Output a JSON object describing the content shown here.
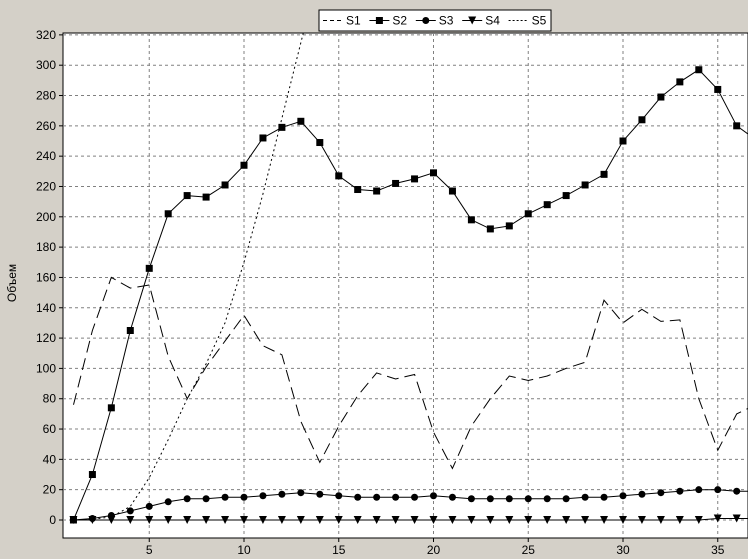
{
  "chart_data": {
    "type": "line",
    "title": "",
    "xlabel": "",
    "ylabel": "Объем",
    "xlim": [
      0,
      37
    ],
    "ylim": [
      -15,
      320
    ],
    "xticks": [
      5,
      10,
      15,
      20,
      25,
      30,
      35
    ],
    "yticks": [
      0,
      20,
      40,
      60,
      80,
      100,
      120,
      140,
      160,
      180,
      200,
      220,
      240,
      260,
      280,
      300,
      320
    ],
    "grid": true,
    "legend_position": "top-center",
    "x": [
      1,
      2,
      3,
      4,
      5,
      6,
      7,
      8,
      9,
      10,
      11,
      12,
      13,
      14,
      15,
      16,
      17,
      18,
      19,
      20,
      21,
      22,
      23,
      24,
      25,
      26,
      27,
      28,
      29,
      30,
      31,
      32,
      33,
      34,
      35,
      36,
      37
    ],
    "series": [
      {
        "name": "S1",
        "line": "dash",
        "marker": "none",
        "values": [
          76,
          125,
          160,
          153,
          155,
          108,
          80,
          101,
          118,
          135,
          115,
          109,
          65,
          38,
          62,
          82,
          97,
          93,
          96,
          58,
          34,
          62,
          80,
          95,
          92,
          95,
          100,
          104,
          145,
          130,
          139,
          131,
          132,
          80,
          46,
          70,
          76
        ]
      },
      {
        "name": "S2",
        "line": "solid",
        "marker": "square",
        "values": [
          0,
          30,
          74,
          125,
          166,
          202,
          214,
          213,
          221,
          234,
          252,
          259,
          263,
          249,
          227,
          218,
          217,
          222,
          225,
          229,
          217,
          198,
          192,
          194,
          202,
          208,
          214,
          221,
          228,
          250,
          264,
          279,
          289,
          297,
          284,
          260,
          251
        ]
      },
      {
        "name": "S3",
        "line": "solid",
        "marker": "circle",
        "values": [
          0,
          1,
          3,
          6,
          9,
          12,
          14,
          14,
          15,
          15,
          16,
          17,
          18,
          17,
          16,
          15,
          15,
          15,
          15,
          16,
          15,
          14,
          14,
          14,
          14,
          14,
          14,
          15,
          15,
          16,
          17,
          18,
          19,
          20,
          20,
          19,
          19
        ]
      },
      {
        "name": "S4",
        "line": "solid",
        "marker": "triangle-down",
        "values": [
          0,
          0,
          0,
          0,
          0,
          0,
          0,
          0,
          0,
          0,
          0,
          0,
          0,
          0,
          0,
          0,
          0,
          0,
          0,
          0,
          0,
          0,
          0,
          0,
          0,
          0,
          0,
          0,
          0,
          0,
          0,
          0,
          0,
          0,
          1,
          1,
          1
        ]
      },
      {
        "name": "S5",
        "line": "dot",
        "marker": "none",
        "values": [
          0,
          0.5,
          2,
          9,
          28,
          53,
          80,
          103,
          130,
          170,
          215,
          265,
          315,
          365,
          null,
          null,
          null,
          null,
          null,
          null,
          null,
          null,
          null,
          null,
          null,
          null,
          null,
          null,
          null,
          null,
          null,
          null,
          null,
          null,
          null,
          null,
          null
        ]
      }
    ]
  }
}
